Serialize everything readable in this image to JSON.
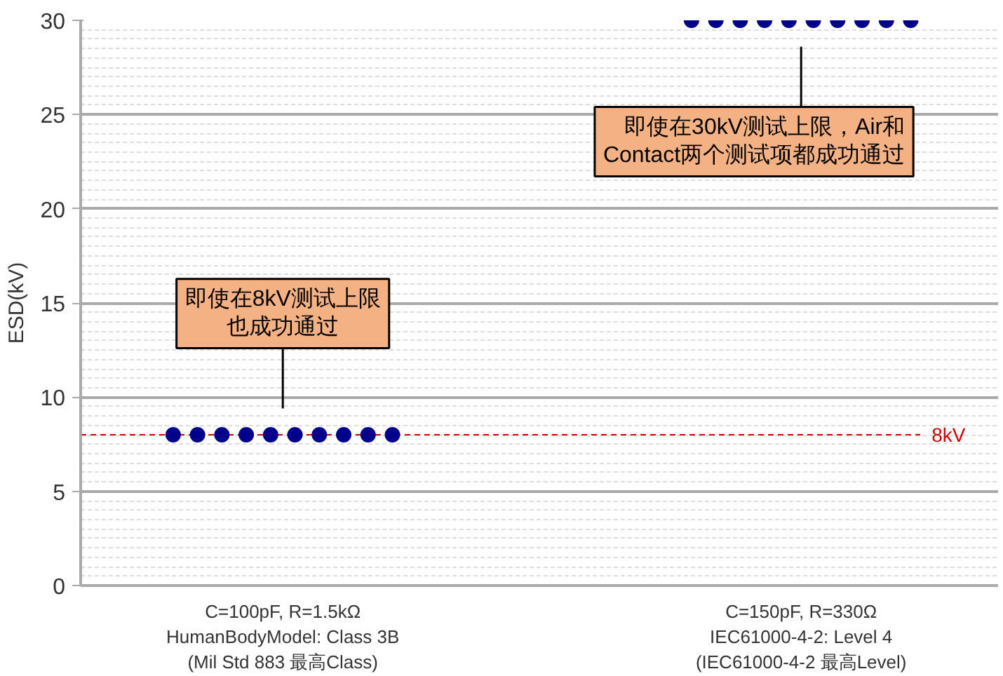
{
  "chart_data": {
    "type": "scatter",
    "ylabel": "ESD(kV)",
    "categories": [
      "C=100pF, R=1.5kΩ\nHumanBodyModel: Class 3B\n(Mil Std 883 最高Class)",
      "C=150pF, R=330Ω\nIEC61000-4-2: Level 4\n(IEC61000-4-2 最高Level)"
    ],
    "series": [
      {
        "color": "#00008b",
        "values": [
          8,
          30
        ]
      },
      {
        "color": "#00008b",
        "values": [
          8,
          30
        ]
      },
      {
        "color": "#00008b",
        "values": [
          8,
          30
        ]
      },
      {
        "color": "#00008b",
        "values": [
          8,
          30
        ]
      },
      {
        "color": "#00008b",
        "values": [
          8,
          30
        ]
      },
      {
        "color": "#00008b",
        "values": [
          8,
          30
        ]
      },
      {
        "color": "#00008b",
        "values": [
          8,
          30
        ]
      },
      {
        "color": "#00008b",
        "values": [
          8,
          30
        ]
      },
      {
        "color": "#00008b",
        "values": [
          8,
          30
        ]
      },
      {
        "color": "#00008b",
        "values": [
          8,
          30
        ]
      }
    ],
    "ylim": [
      0,
      30
    ],
    "yticks": [
      0,
      5,
      10,
      15,
      20,
      25,
      30
    ],
    "grid": "y",
    "marker": "circle",
    "ref_lines": [
      {
        "axis": "y",
        "value": 8,
        "label": "8kV",
        "color": "#cc0000",
        "line_style": "dashed"
      }
    ],
    "annotations": [
      "即使在8kV测试上限也成功通过",
      "即使在30kV测试上限，Air和\nContact两个测试项都成功通过"
    ]
  }
}
